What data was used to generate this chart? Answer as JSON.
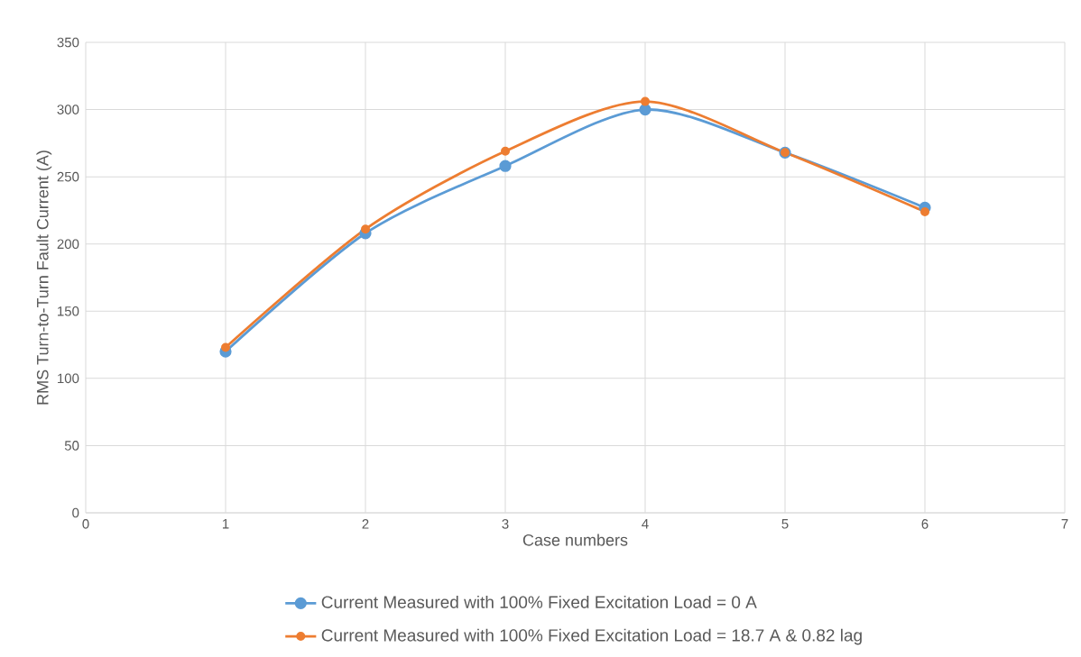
{
  "chart_data": {
    "type": "line",
    "xlabel": "Case numbers",
    "ylabel": "RMS Turn-to-Turn Fault Current (A)",
    "x": [
      1,
      2,
      3,
      4,
      5,
      6
    ],
    "series": [
      {
        "name": "Current Measured with 100% Fixed Excitation Load = 0 A",
        "color": "#5b9bd5",
        "values": [
          120,
          208,
          258,
          300,
          268,
          227
        ]
      },
      {
        "name": "Current Measured with 100% Fixed Excitation Load = 18.7 A & 0.82 lag",
        "color": "#ed7d31",
        "values": [
          123,
          211,
          269,
          306,
          268,
          224
        ]
      }
    ],
    "xlim": [
      0,
      7
    ],
    "xticks": [
      0,
      1,
      2,
      3,
      4,
      5,
      6,
      7
    ],
    "ylim": [
      0,
      350
    ],
    "yticks": [
      0,
      50,
      100,
      150,
      200,
      250,
      300,
      350
    ],
    "grid": true,
    "legend": "bottom",
    "marker": "circle",
    "line_style": "solid"
  }
}
